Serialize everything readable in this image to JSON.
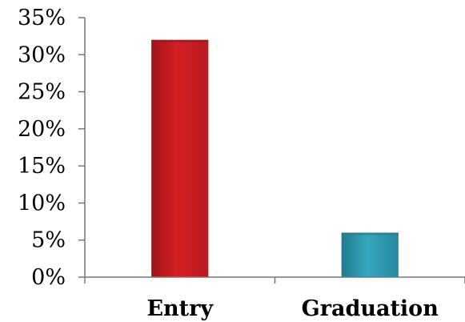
{
  "chart_data": {
    "type": "bar",
    "categories": [
      "Entry",
      "Graduation"
    ],
    "values": [
      32,
      6
    ],
    "value_unit": "%",
    "title": "",
    "xlabel": "",
    "ylabel": "",
    "ylim": [
      0,
      35
    ],
    "y_ticks": [
      "0%",
      "5%",
      "10%",
      "15%",
      "20%",
      "25%",
      "30%",
      "35%"
    ],
    "grid": false,
    "legend": "none",
    "bar_colors": [
      "#d42025",
      "#2f9eb5"
    ],
    "bar_edge_colors": [
      "#9e1518",
      "#1f7a8e"
    ]
  }
}
